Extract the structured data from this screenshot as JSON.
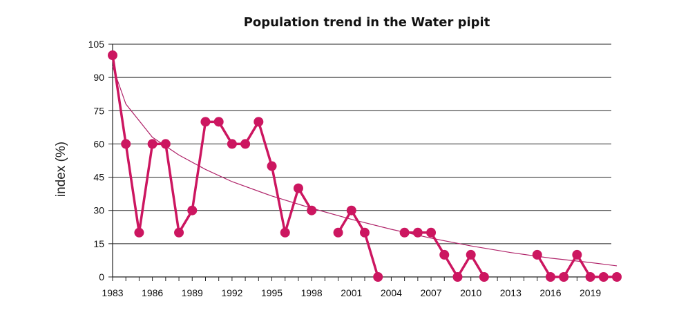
{
  "chart_data": {
    "type": "line",
    "title": "Population trend in the Water pipit",
    "xlabel": "",
    "ylabel": "index (%)",
    "xlim": [
      1983,
      2021
    ],
    "ylim": [
      0,
      105
    ],
    "yticks": [
      0,
      15,
      30,
      45,
      60,
      75,
      90,
      105
    ],
    "xticks": [
      1983,
      1986,
      1989,
      1992,
      1995,
      1998,
      2001,
      2004,
      2007,
      2010,
      2013,
      2016,
      2019
    ],
    "grid": "horizontal",
    "colors": {
      "series": "#cc1660",
      "trend": "#b0246a",
      "grid": "#222222"
    },
    "series": [
      {
        "x": [
          1983,
          1984,
          1985,
          1986,
          1987,
          1988,
          1989,
          1990,
          1991,
          1992,
          1993,
          1994,
          1995,
          1996,
          1997,
          1998,
          2000,
          2001,
          2002,
          2003,
          2005,
          2006,
          2007,
          2008,
          2009,
          2010,
          2011,
          2015,
          2016,
          2017,
          2018,
          2019,
          2020,
          2021
        ],
        "values": [
          100,
          60,
          20,
          60,
          60,
          20,
          30,
          70,
          70,
          60,
          60,
          70,
          50,
          20,
          40,
          30,
          20,
          30,
          20,
          0,
          20,
          20,
          20,
          10,
          0,
          10,
          0,
          10,
          0,
          0,
          10,
          0,
          0,
          0
        ],
        "segments": [
          [
            1983,
            1984,
            1985,
            1986,
            1987,
            1988,
            1989,
            1990,
            1991,
            1992,
            1993,
            1994,
            1995,
            1996,
            1997,
            1998
          ],
          [
            2000,
            2001,
            2002,
            2003
          ],
          [
            2005,
            2006,
            2007,
            2008,
            2009,
            2010,
            2011
          ],
          [
            2015,
            2016,
            2017,
            2018,
            2019,
            2020,
            2021
          ]
        ]
      },
      {
        "type": "trendline",
        "x": [
          1983,
          1984,
          1986,
          1988,
          1990,
          1992,
          1995,
          1998,
          2001,
          2004,
          2007,
          2010,
          2013,
          2016,
          2019,
          2021
        ],
        "values": [
          95,
          78,
          63,
          55,
          48.5,
          43,
          36.5,
          31,
          26,
          21.5,
          17.5,
          14,
          11,
          8.5,
          6.5,
          5
        ]
      }
    ]
  }
}
